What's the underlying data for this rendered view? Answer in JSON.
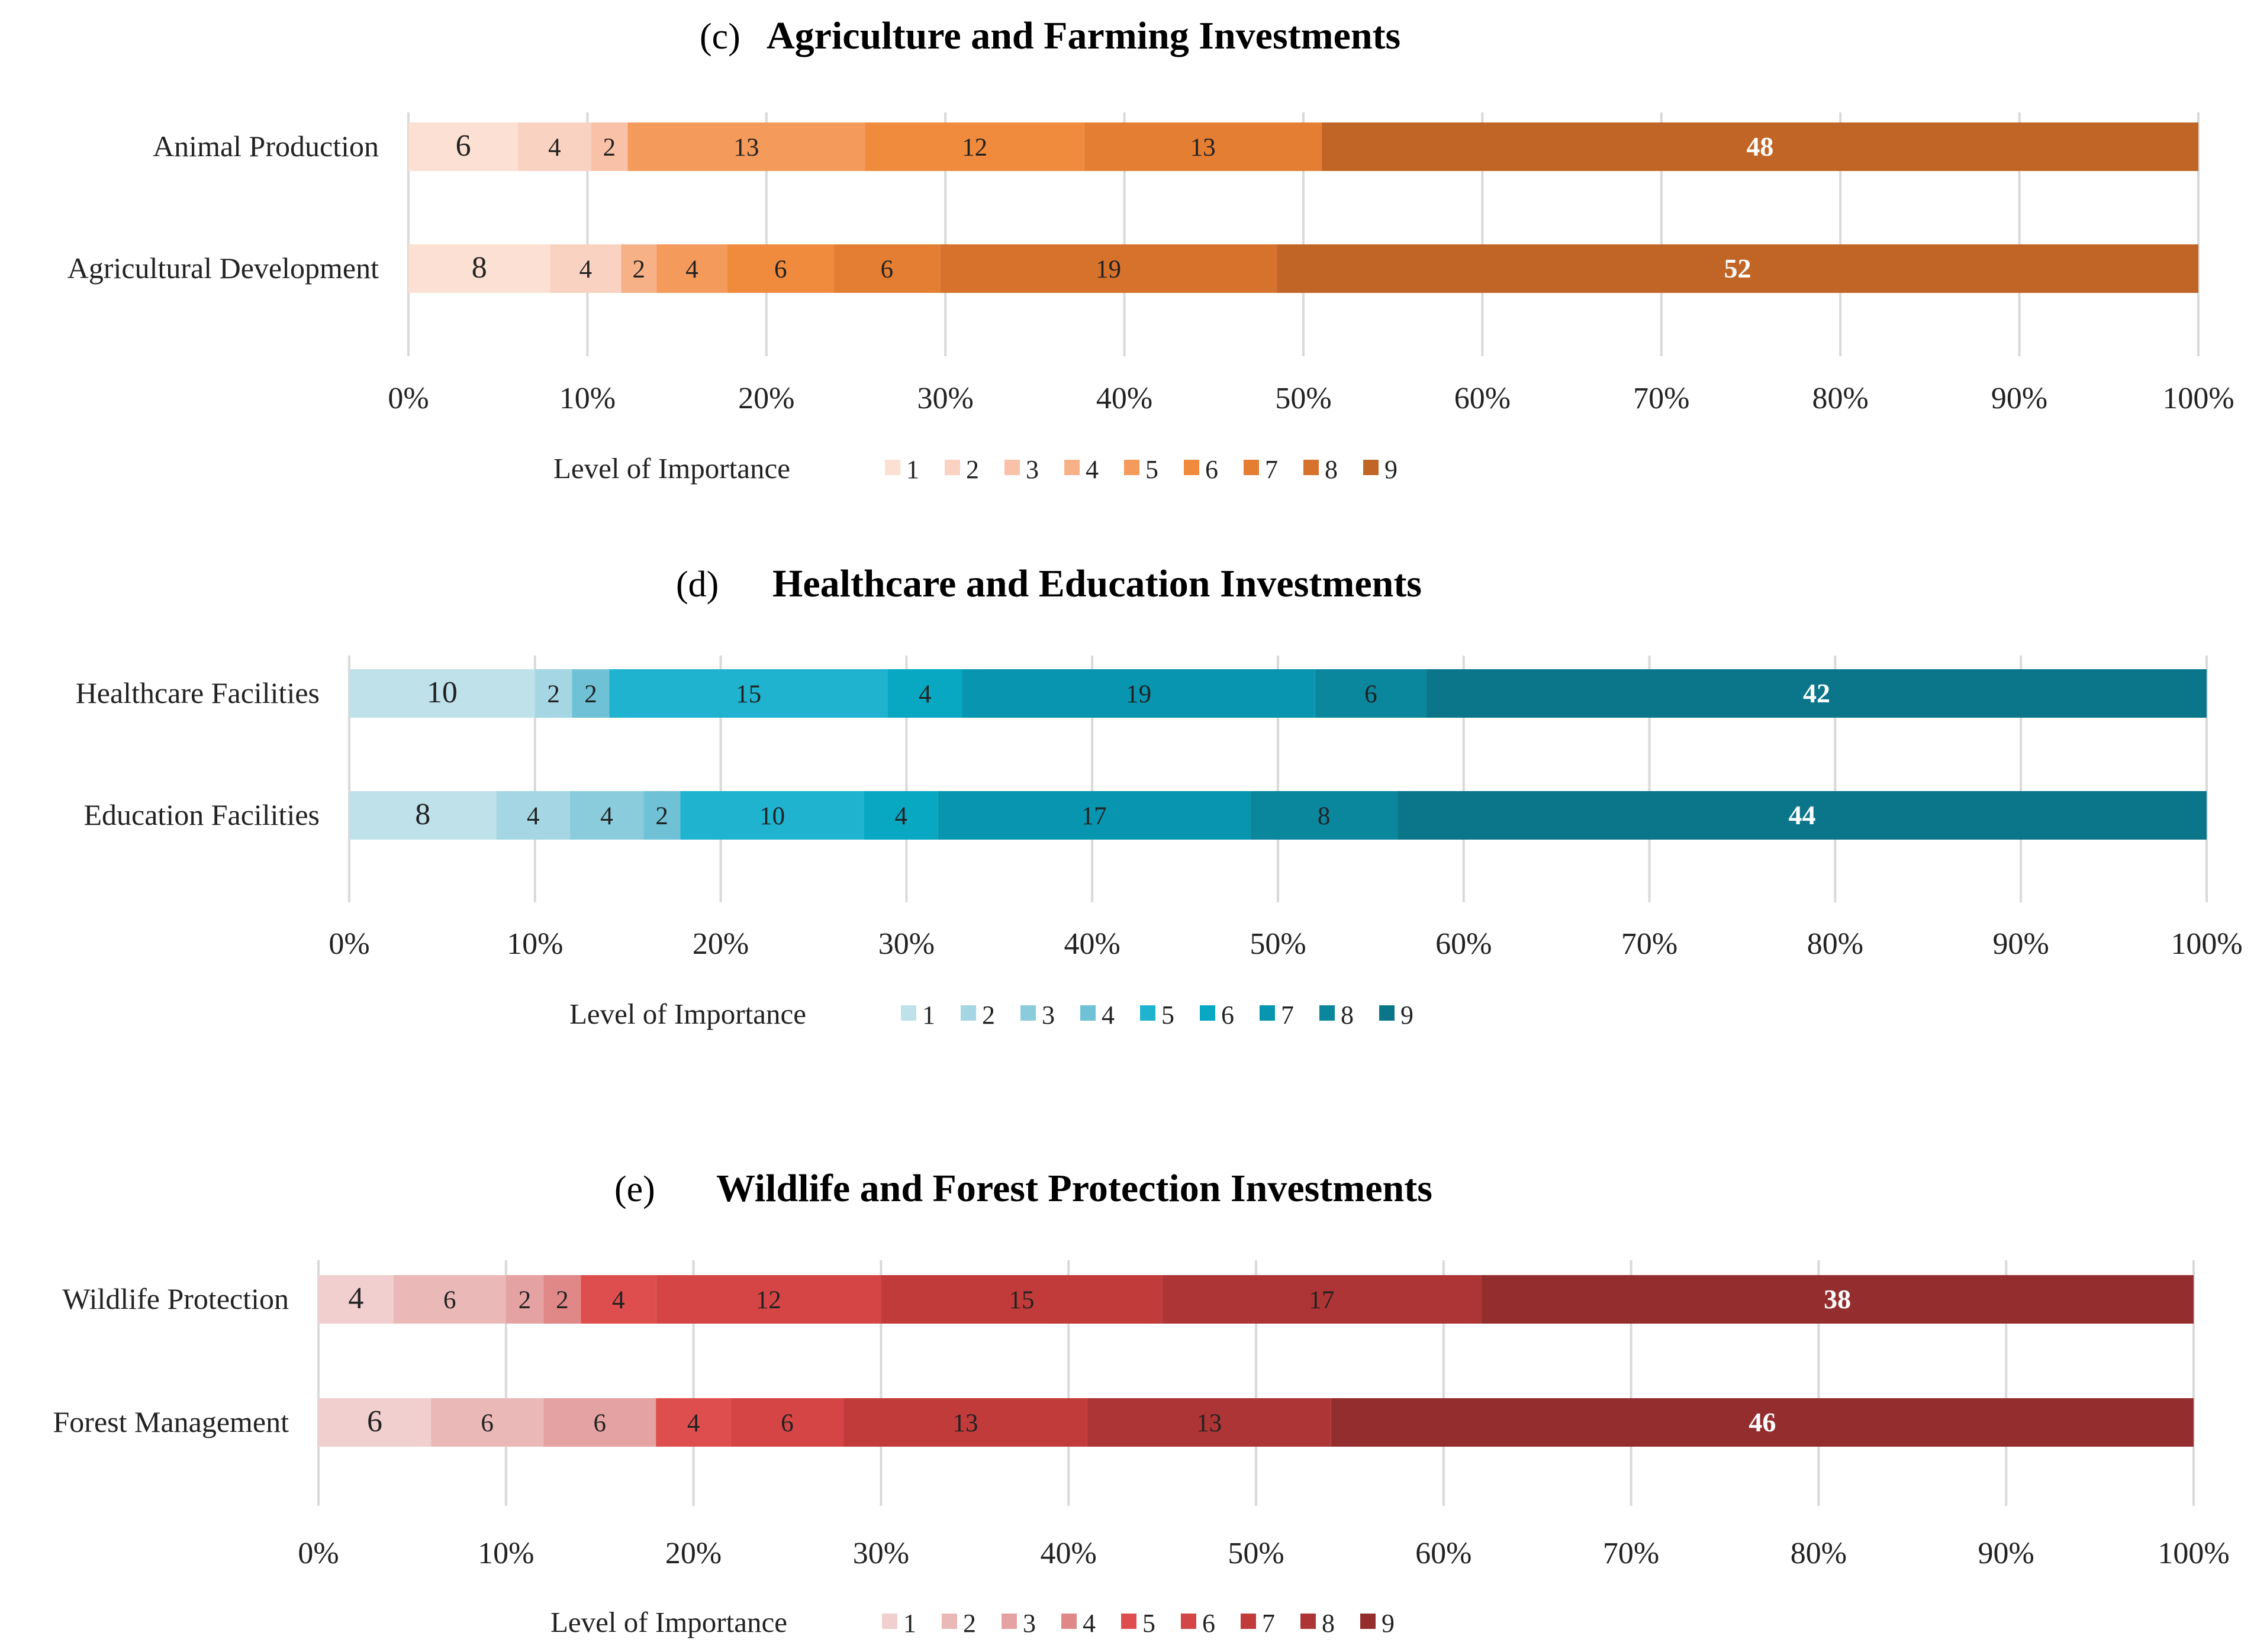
{
  "chart_data": [
    {
      "type": "bar",
      "orientation": "horizontal",
      "stacked": "percent",
      "panel": "(c)",
      "title": "Agriculture and Farming Investments",
      "categories": [
        "Animal Production",
        "Agricultural Development"
      ],
      "legend_title": "Level of Importance",
      "legend_position": "bottom",
      "xlim": [
        0,
        100
      ],
      "xticks": [
        "0%",
        "10%",
        "20%",
        "30%",
        "40%",
        "50%",
        "60%",
        "70%",
        "80%",
        "90%",
        "100%"
      ],
      "grid": true,
      "series": [
        {
          "name": "1",
          "color": "#FCE0D3",
          "values": [
            6,
            8
          ]
        },
        {
          "name": "2",
          "color": "#FAD2C1",
          "values": [
            4,
            4
          ]
        },
        {
          "name": "3",
          "color": "#F9C2A8",
          "values": [
            2,
            0
          ]
        },
        {
          "name": "4",
          "color": "#F7B187",
          "values": [
            0,
            2
          ]
        },
        {
          "name": "5",
          "color": "#F49A5B",
          "values": [
            13,
            4
          ]
        },
        {
          "name": "6",
          "color": "#F08B3D",
          "values": [
            12,
            6
          ]
        },
        {
          "name": "7",
          "color": "#E47E33",
          "values": [
            13,
            6
          ]
        },
        {
          "name": "8",
          "color": "#D7722C",
          "values": [
            0,
            19
          ]
        },
        {
          "name": "9",
          "color": "#C06526",
          "values": [
            48,
            52
          ]
        }
      ]
    },
    {
      "type": "bar",
      "orientation": "horizontal",
      "stacked": "percent",
      "panel": "(d)",
      "title": "Healthcare and Education Investments",
      "categories": [
        "Healthcare Facilities",
        "Education Facilities"
      ],
      "legend_title": "Level of Importance",
      "legend_position": "bottom",
      "xlim": [
        0,
        100
      ],
      "xticks": [
        "0%",
        "10%",
        "20%",
        "30%",
        "40%",
        "50%",
        "60%",
        "70%",
        "80%",
        "90%",
        "100%"
      ],
      "grid": true,
      "series": [
        {
          "name": "1",
          "color": "#BFE1EA",
          "values": [
            10,
            8
          ]
        },
        {
          "name": "2",
          "color": "#A5D6E3",
          "values": [
            2,
            4
          ]
        },
        {
          "name": "3",
          "color": "#8BCCDC",
          "values": [
            0,
            4
          ]
        },
        {
          "name": "4",
          "color": "#6FC1D6",
          "values": [
            2,
            2
          ]
        },
        {
          "name": "5",
          "color": "#1FB3CF",
          "values": [
            15,
            10
          ]
        },
        {
          "name": "6",
          "color": "#08A7C2",
          "values": [
            4,
            4
          ]
        },
        {
          "name": "7",
          "color": "#0895B0",
          "values": [
            19,
            17
          ]
        },
        {
          "name": "8",
          "color": "#0A869D",
          "values": [
            6,
            8
          ]
        },
        {
          "name": "9",
          "color": "#0B768A",
          "values": [
            42,
            44
          ]
        }
      ]
    },
    {
      "type": "bar",
      "orientation": "horizontal",
      "stacked": "percent",
      "panel": "(e)",
      "title": "Wildlife and Forest Protection Investments",
      "categories": [
        "Wildlife Protection",
        "Forest Management"
      ],
      "legend_title": "Level of Importance",
      "legend_position": "bottom",
      "xlim": [
        0,
        100
      ],
      "xticks": [
        "0%",
        "10%",
        "20%",
        "30%",
        "40%",
        "50%",
        "60%",
        "70%",
        "80%",
        "90%",
        "100%"
      ],
      "grid": true,
      "series": [
        {
          "name": "1",
          "color": "#F2CFCF",
          "values": [
            4,
            6
          ]
        },
        {
          "name": "2",
          "color": "#EBB8B8",
          "values": [
            6,
            6
          ]
        },
        {
          "name": "3",
          "color": "#E5A2A2",
          "values": [
            2,
            6
          ]
        },
        {
          "name": "4",
          "color": "#E08888",
          "values": [
            2,
            0
          ]
        },
        {
          "name": "5",
          "color": "#DE4E4E",
          "values": [
            4,
            4
          ]
        },
        {
          "name": "6",
          "color": "#D54545",
          "values": [
            12,
            6
          ]
        },
        {
          "name": "7",
          "color": "#C13B3B",
          "values": [
            15,
            13
          ]
        },
        {
          "name": "8",
          "color": "#AE3535",
          "values": [
            17,
            13
          ]
        },
        {
          "name": "9",
          "color": "#942E2E",
          "values": [
            38,
            46
          ]
        }
      ]
    }
  ]
}
